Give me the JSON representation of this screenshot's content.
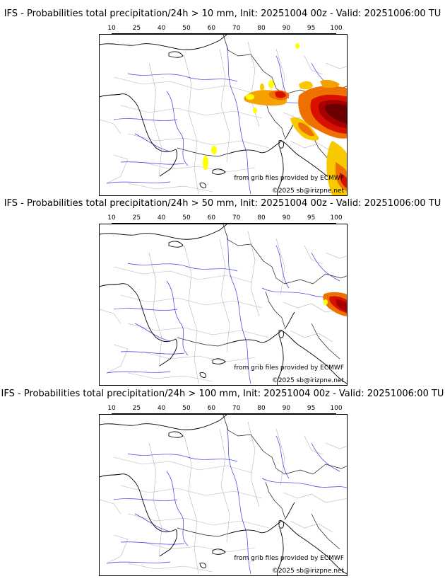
{
  "colorbar": {
    "ticks": [
      "10",
      "25",
      "40",
      "50",
      "60",
      "70",
      "80",
      "90",
      "95",
      "100"
    ],
    "colors": [
      "#ffff00",
      "#f8c800",
      "#f5a200",
      "#f08a00",
      "#ee7000",
      "#e85000",
      "#d81000",
      "#a80000",
      "#6a0000"
    ]
  },
  "map_credits": {
    "source": "from grib files provided by ECMWF",
    "copyright": "©2025 sb@irizpne.net"
  },
  "panels": [
    {
      "title": "IFS - Probabilities total precipitation/24h > 10 mm, Init: 20251004 00z - Valid: 20251006:00 TU"
    },
    {
      "title": "IFS - Probabilities total precipitation/24h > 50 mm, Init: 20251004 00z - Valid: 20251006:00 TU"
    },
    {
      "title": "IFS - Probabilities total precipitation/24h > 100 mm, Init: 20251004 00z - Valid: 20251006:00 TU"
    }
  ]
}
